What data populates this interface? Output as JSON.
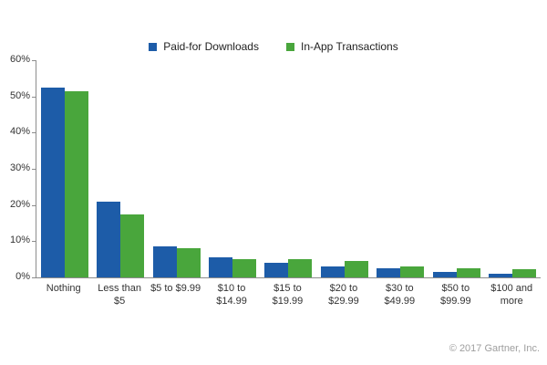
{
  "legend": {
    "items": [
      {
        "label": "Paid-for Downloads",
        "color": "#1d5ca8"
      },
      {
        "label": "In-App Transactions",
        "color": "#49a63c"
      }
    ]
  },
  "footer": {
    "copyright": "© 2017 Gartner, Inc."
  },
  "colors": {
    "axis": "#8c8c8c",
    "label_text": "#333333",
    "muted_text": "#9e9e9e",
    "background": "#ffffff"
  },
  "chart_data": {
    "type": "bar",
    "categories": [
      "Nothing",
      "Less than\n$5",
      "$5 to $9.99",
      "$10 to\n$14.99",
      "$15 to\n$19.99",
      "$20 to\n$29.99",
      "$30 to\n$49.99",
      "$50 to\n$99.99",
      "$100 and\nmore"
    ],
    "series": [
      {
        "name": "Paid-for Downloads",
        "color": "#1d5ca8",
        "values": [
          52.5,
          21,
          8.5,
          5.5,
          4,
          3,
          2.5,
          1.5,
          1
        ]
      },
      {
        "name": "In-App Transactions",
        "color": "#49a63c",
        "values": [
          51.5,
          17.5,
          8,
          5,
          5,
          4.5,
          3,
          2.5,
          2.3
        ]
      }
    ],
    "xlabel": "",
    "ylabel": "",
    "ylim": [
      0,
      60
    ],
    "yticks": [
      0,
      10,
      20,
      30,
      40,
      50,
      60
    ],
    "ytick_suffix": "%",
    "grid": false,
    "legend_position": "top-center"
  }
}
